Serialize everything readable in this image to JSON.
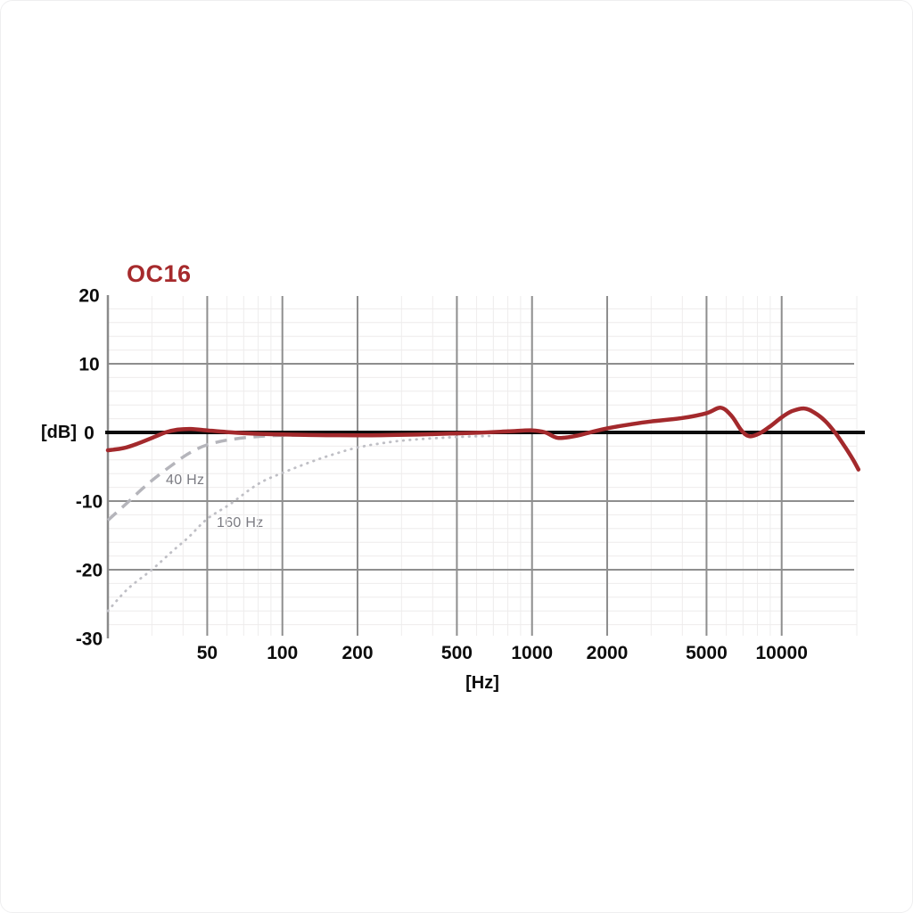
{
  "title": {
    "text": "OC16",
    "color": "#A62A2C"
  },
  "chart_data": {
    "type": "line",
    "title": "OC16",
    "x_axis": {
      "label": "[Hz]",
      "scale": "log",
      "range": [
        20,
        20000
      ],
      "major_ticks": [
        50,
        100,
        200,
        500,
        1000,
        2000,
        5000,
        10000
      ],
      "minor_ticks": [
        30,
        40,
        60,
        70,
        80,
        90,
        300,
        400,
        600,
        700,
        800,
        900,
        3000,
        4000,
        6000,
        7000,
        8000,
        9000,
        20000
      ]
    },
    "y_axis": {
      "label": "[dB]",
      "range": [
        -30,
        20
      ],
      "major_ticks": [
        20,
        10,
        0,
        -10,
        -20,
        -30
      ],
      "minor_step": 2
    },
    "grid": {
      "major_color": "#8e8e8e",
      "minor_color": "#eeecec",
      "axis_color": "#8a8a8a",
      "zero_line_color": "#0b0b0b"
    },
    "series": [
      {
        "name": "OC16 frequency response",
        "color": "#A3292C",
        "line_style": "solid",
        "points": [
          [
            20,
            -2.6
          ],
          [
            23,
            -2.3
          ],
          [
            26,
            -1.7
          ],
          [
            31,
            -0.6
          ],
          [
            34,
            0.0
          ],
          [
            38,
            0.4
          ],
          [
            43,
            0.5
          ],
          [
            50,
            0.3
          ],
          [
            60,
            0.05
          ],
          [
            75,
            -0.15
          ],
          [
            100,
            -0.3
          ],
          [
            150,
            -0.4
          ],
          [
            250,
            -0.4
          ],
          [
            400,
            -0.25
          ],
          [
            600,
            -0.05
          ],
          [
            800,
            0.15
          ],
          [
            1000,
            0.3
          ],
          [
            1130,
            0.0
          ],
          [
            1270,
            -0.8
          ],
          [
            1500,
            -0.5
          ],
          [
            1750,
            0.1
          ],
          [
            2000,
            0.6
          ],
          [
            2500,
            1.2
          ],
          [
            3000,
            1.6
          ],
          [
            4000,
            2.1
          ],
          [
            5000,
            2.8
          ],
          [
            5700,
            3.6
          ],
          [
            6300,
            2.4
          ],
          [
            6900,
            0.3
          ],
          [
            7400,
            -0.55
          ],
          [
            8100,
            -0.2
          ],
          [
            9000,
            0.9
          ],
          [
            10000,
            2.2
          ],
          [
            11000,
            3.1
          ],
          [
            12300,
            3.5
          ],
          [
            13500,
            2.9
          ],
          [
            15000,
            1.6
          ],
          [
            16500,
            -0.2
          ],
          [
            18000,
            -2.2
          ],
          [
            19200,
            -3.8
          ],
          [
            20300,
            -5.4
          ]
        ]
      },
      {
        "name": "40 Hz low-cut filter",
        "label_text": "40 Hz",
        "color": "#b5b5bb",
        "line_style": "dashed",
        "points": [
          [
            20,
            -12.8
          ],
          [
            24,
            -10.2
          ],
          [
            27.5,
            -8.2
          ],
          [
            31,
            -6.6
          ],
          [
            36,
            -4.8
          ],
          [
            42,
            -3.1
          ],
          [
            50,
            -1.8
          ],
          [
            63,
            -1.0
          ],
          [
            83,
            -0.55
          ],
          [
            108,
            -0.4
          ],
          [
            130,
            -0.35
          ]
        ]
      },
      {
        "name": "160 Hz low-cut filter",
        "label_text": "160 Hz",
        "color": "#bfbfc5",
        "line_style": "dotted",
        "points": [
          [
            20,
            -26
          ],
          [
            24,
            -22.8
          ],
          [
            30,
            -20
          ],
          [
            36,
            -17.4
          ],
          [
            42,
            -15.3
          ],
          [
            50,
            -12.6
          ],
          [
            62,
            -10.4
          ],
          [
            80,
            -7.5
          ],
          [
            100,
            -5.9
          ],
          [
            130,
            -4.3
          ],
          [
            160,
            -3.2
          ],
          [
            200,
            -2.2
          ],
          [
            270,
            -1.4
          ],
          [
            350,
            -1.0
          ],
          [
            450,
            -0.75
          ],
          [
            560,
            -0.6
          ],
          [
            700,
            -0.5
          ]
        ]
      }
    ]
  }
}
